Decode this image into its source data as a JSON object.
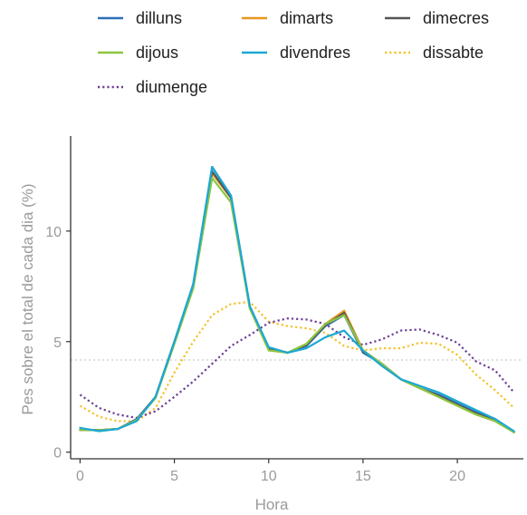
{
  "chart_data": {
    "type": "line",
    "xlabel": "Hora",
    "ylabel": "Pes sobre el total de cada dia (%)",
    "xlim": [
      -0.5,
      23.5
    ],
    "ylim": [
      -0.3,
      14.3
    ],
    "x_ticks": [
      0,
      5,
      10,
      15,
      20
    ],
    "y_ticks": [
      0,
      5,
      10
    ],
    "grid": false,
    "legend_position": "top",
    "reference_line": {
      "y": 4.17,
      "style": "dotted",
      "color": "#cccccc"
    },
    "x": [
      0,
      1,
      2,
      3,
      4,
      5,
      6,
      7,
      8,
      9,
      10,
      11,
      12,
      13,
      14,
      15,
      16,
      17,
      18,
      19,
      20,
      21,
      22,
      23
    ],
    "series": [
      {
        "name": "dilluns",
        "color": "#2d6fb8",
        "dash": "solid",
        "values": [
          1.0,
          1.0,
          1.05,
          1.5,
          2.5,
          5.0,
          7.6,
          12.9,
          11.6,
          6.6,
          4.7,
          4.5,
          4.8,
          5.7,
          6.2,
          4.5,
          4.0,
          3.3,
          2.9,
          2.6,
          2.2,
          1.8,
          1.5,
          0.9
        ]
      },
      {
        "name": "dimarts",
        "color": "#e8961e",
        "dash": "solid",
        "values": [
          1.0,
          1.0,
          1.05,
          1.45,
          2.5,
          5.0,
          7.5,
          12.6,
          11.5,
          6.5,
          4.7,
          4.5,
          4.9,
          5.8,
          6.4,
          4.6,
          4.0,
          3.3,
          2.9,
          2.5,
          2.1,
          1.7,
          1.4,
          0.9
        ]
      },
      {
        "name": "dimecres",
        "color": "#555555",
        "dash": "solid",
        "values": [
          1.0,
          1.0,
          1.05,
          1.45,
          2.5,
          5.0,
          7.55,
          12.7,
          11.5,
          6.55,
          4.7,
          4.5,
          4.85,
          5.75,
          6.3,
          4.55,
          4.0,
          3.3,
          2.9,
          2.55,
          2.15,
          1.75,
          1.45,
          0.9
        ]
      },
      {
        "name": "dijous",
        "color": "#8cc63f",
        "dash": "solid",
        "values": [
          1.0,
          1.0,
          1.05,
          1.45,
          2.45,
          4.9,
          7.4,
          12.4,
          11.3,
          6.5,
          4.6,
          4.5,
          4.9,
          5.8,
          6.2,
          4.6,
          4.0,
          3.3,
          2.9,
          2.5,
          2.1,
          1.7,
          1.4,
          0.9
        ]
      },
      {
        "name": "divendres",
        "color": "#1ba8d4",
        "dash": "solid",
        "values": [
          1.1,
          0.95,
          1.05,
          1.4,
          2.5,
          5.0,
          7.6,
          12.9,
          11.6,
          6.6,
          4.75,
          4.5,
          4.7,
          5.2,
          5.5,
          4.6,
          3.9,
          3.3,
          3.0,
          2.7,
          2.3,
          1.9,
          1.5,
          0.95
        ]
      },
      {
        "name": "dissabte",
        "color": "#f5c025",
        "dash": "dotted",
        "values": [
          2.1,
          1.6,
          1.4,
          1.4,
          2.0,
          3.6,
          5.0,
          6.2,
          6.7,
          6.8,
          5.9,
          5.7,
          5.6,
          5.4,
          4.8,
          4.6,
          4.7,
          4.7,
          4.95,
          4.9,
          4.4,
          3.5,
          2.8,
          2.0
        ]
      },
      {
        "name": "diumenge",
        "color": "#6b3f97",
        "dash": "dotted",
        "values": [
          2.6,
          2.0,
          1.7,
          1.55,
          1.85,
          2.5,
          3.2,
          4.0,
          4.8,
          5.3,
          5.85,
          6.05,
          6.0,
          5.8,
          5.2,
          4.85,
          5.1,
          5.5,
          5.55,
          5.3,
          4.95,
          4.1,
          3.7,
          2.7
        ]
      }
    ]
  }
}
